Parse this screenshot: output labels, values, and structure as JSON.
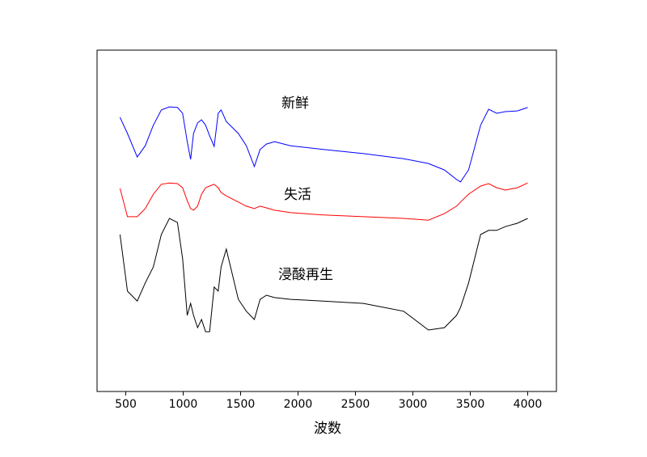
{
  "chart_data": {
    "type": "line",
    "x_label": "波数",
    "x": [
      450,
      515,
      600,
      670,
      740,
      810,
      880,
      950,
      995,
      1035,
      1065,
      1090,
      1125,
      1160,
      1195,
      1230,
      1270,
      1305,
      1330,
      1375,
      1480,
      1550,
      1620,
      1670,
      1725,
      1795,
      1935,
      2220,
      2570,
      2920,
      3135,
      3275,
      3380,
      3415,
      3485,
      3590,
      3660,
      3730,
      3805,
      3910,
      4000
    ],
    "series": [
      {
        "name": "新鲜",
        "color": "#0000ff",
        "values": [
          80.3,
          75.6,
          68.7,
          72.0,
          78.0,
          82.5,
          83.4,
          83.2,
          81.5,
          73.2,
          68.0,
          75.6,
          78.7,
          79.6,
          78.0,
          74.9,
          71.8,
          81.5,
          82.5,
          79.1,
          75.6,
          72.0,
          65.9,
          70.9,
          72.5,
          73.2,
          72.0,
          70.9,
          69.7,
          68.2,
          66.8,
          64.9,
          62.1,
          61.4,
          64.9,
          78.0,
          82.7,
          81.5,
          82.0,
          82.2,
          83.2
        ]
      },
      {
        "name": "失活",
        "color": "#ff0000",
        "values": [
          59.5,
          51.2,
          51.2,
          53.6,
          57.8,
          60.7,
          61.1,
          60.9,
          59.7,
          55.9,
          53.6,
          53.1,
          54.3,
          57.8,
          59.7,
          60.2,
          60.7,
          59.7,
          58.3,
          57.3,
          55.5,
          54.3,
          53.6,
          54.3,
          53.8,
          53.1,
          52.4,
          51.7,
          51.2,
          50.7,
          50.2,
          52.1,
          54.3,
          55.5,
          57.8,
          60.2,
          60.9,
          59.7,
          59.0,
          59.7,
          61.1
        ]
      },
      {
        "name": "浸酸再生",
        "color": "#000000",
        "values": [
          46.0,
          29.4,
          26.5,
          31.8,
          36.5,
          46.0,
          50.7,
          49.5,
          38.9,
          22.3,
          25.8,
          22.3,
          18.7,
          21.1,
          17.5,
          17.5,
          30.6,
          29.4,
          36.5,
          41.7,
          27.0,
          23.5,
          21.1,
          27.0,
          28.2,
          27.5,
          27.0,
          26.5,
          25.8,
          23.5,
          18.0,
          18.7,
          22.3,
          24.6,
          31.8,
          46.0,
          47.2,
          47.2,
          48.3,
          49.3,
          50.7
        ]
      }
    ],
    "xlim": [
      250,
      4250
    ],
    "xticks": [
      500,
      1000,
      1500,
      2000,
      2500,
      3000,
      3500,
      4000
    ],
    "ylim": [
      0,
      100
    ],
    "grid": false
  }
}
